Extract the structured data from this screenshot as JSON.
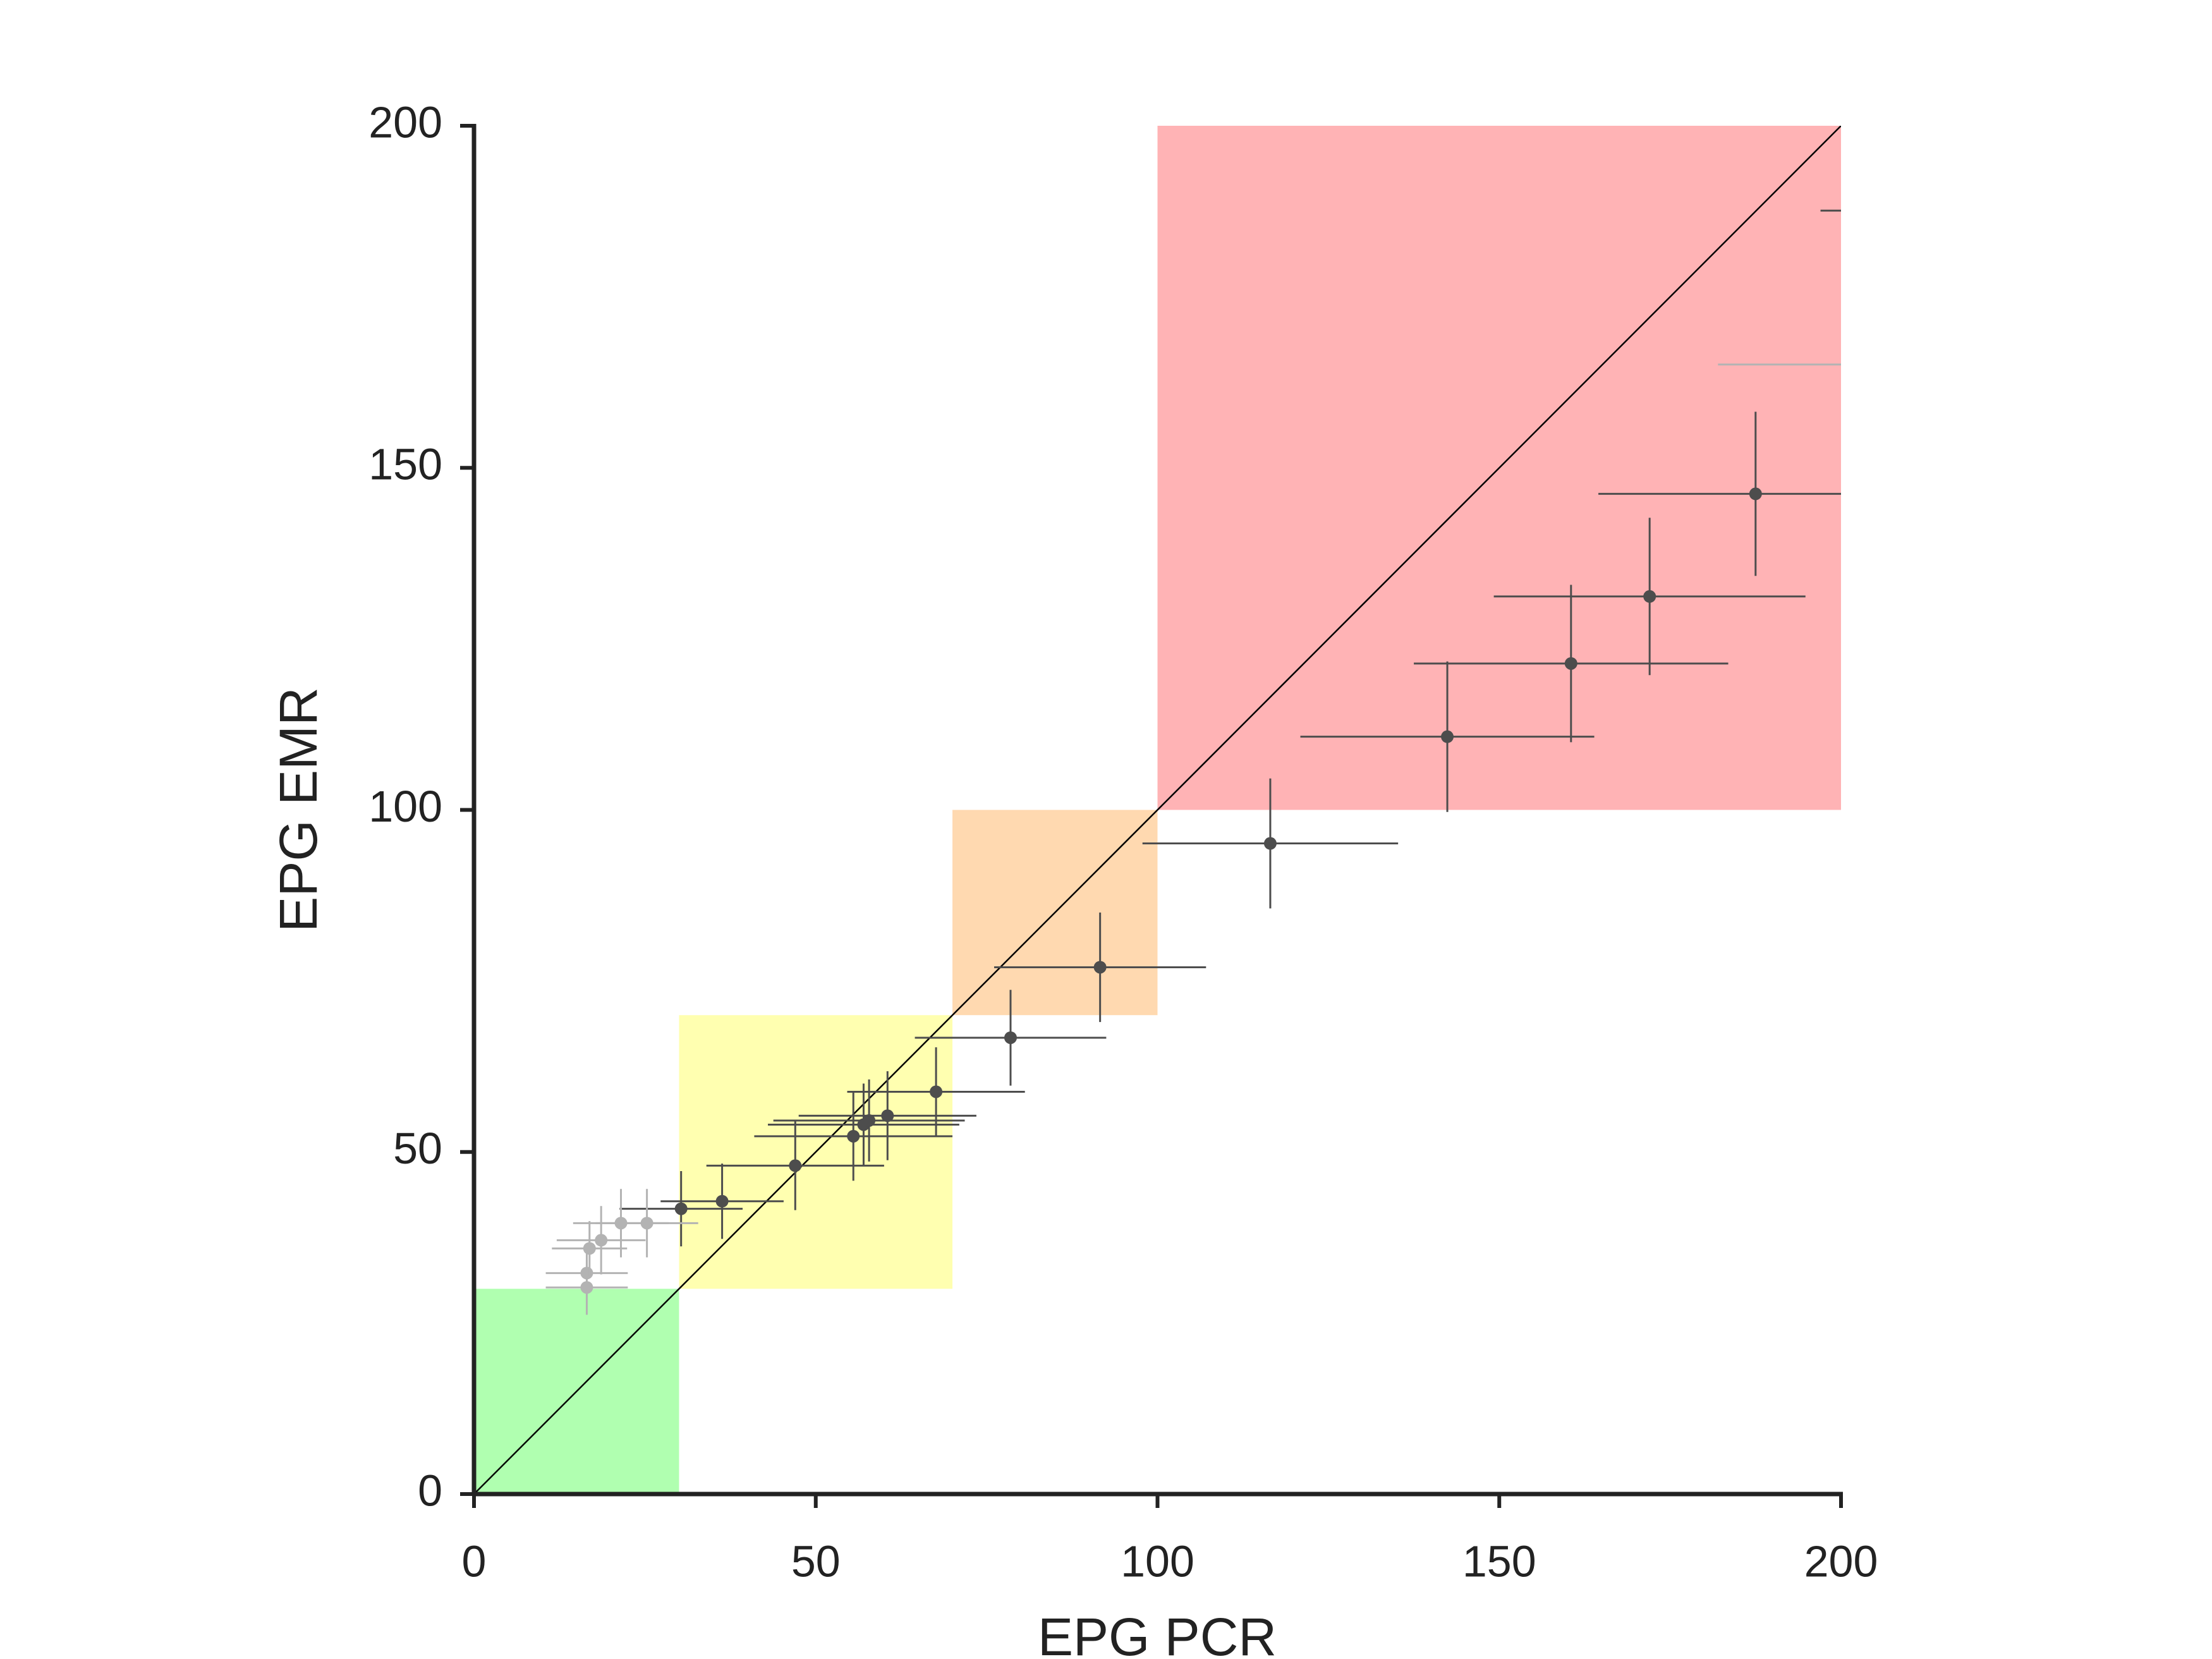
{
  "chart_data": {
    "type": "scatter",
    "x_label": "EPG PCR",
    "y_label": "EPG EMR",
    "xlim": [
      0,
      200
    ],
    "ylim": [
      0,
      200
    ],
    "xticks": [
      0,
      50,
      100,
      150,
      200
    ],
    "yticks": [
      0,
      50,
      100,
      150,
      200
    ],
    "identity_line": true,
    "regions": [
      {
        "xlim": [
          0,
          30
        ],
        "ylim": [
          0,
          30
        ],
        "color": "#b0ffb0"
      },
      {
        "xlim": [
          30,
          70
        ],
        "ylim": [
          30,
          70
        ],
        "color": "#ffffb0"
      },
      {
        "xlim": [
          70,
          100
        ],
        "ylim": [
          70,
          100
        ],
        "color": "#ffd9b0"
      },
      {
        "xlim": [
          100,
          200
        ],
        "ylim": [
          100,
          200
        ],
        "color": "#ffb3b5"
      }
    ],
    "series": [
      {
        "color": "#4d4d4d",
        "x": [
          30.3,
          36.3,
          47,
          55.5,
          57,
          57.8,
          60.5,
          67.6,
          78.5,
          91.6,
          116.5,
          142.4,
          160.5,
          172,
          187.5,
          222
        ],
        "values": [
          41.7,
          42.8,
          48,
          52.3,
          54,
          54.6,
          55.3,
          58.8,
          66.7,
          77,
          95.1,
          110.7,
          121.4,
          131.2,
          146.2,
          187.6
        ],
        "xerr": [
          9,
          9,
          13,
          14.5,
          14,
          14,
          13,
          13,
          14,
          15.5,
          18.7,
          21.5,
          23,
          22.8,
          23,
          25
        ],
        "yerr": [
          5.5,
          5.5,
          6.5,
          6.5,
          6,
          6,
          6.5,
          6.5,
          7,
          8,
          9.5,
          11,
          11.5,
          11.5,
          12,
          15
        ]
      },
      {
        "color": "#b3b3b3",
        "x": [
          16.5,
          16.5,
          16.9,
          18.6,
          21.5,
          25.3,
          205
        ],
        "values": [
          30.2,
          32.3,
          35.9,
          37.1,
          39.6,
          39.6,
          165.1
        ],
        "xerr": [
          6,
          6,
          5.5,
          6.5,
          7,
          7.5,
          23
        ],
        "yerr": [
          4,
          4,
          4,
          5,
          5,
          5,
          12
        ]
      }
    ]
  }
}
